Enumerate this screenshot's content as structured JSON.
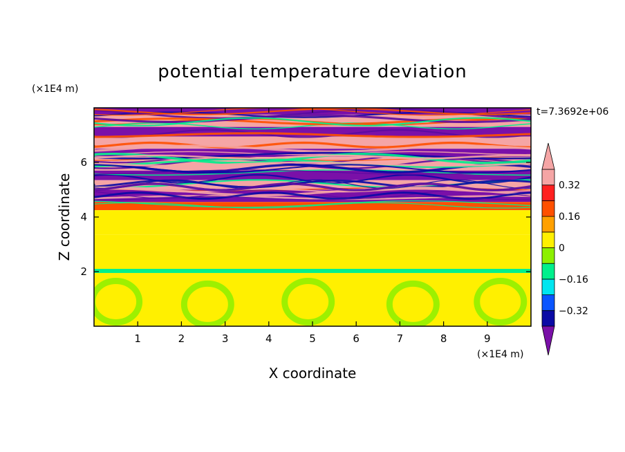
{
  "chart_data": {
    "type": "heatmap",
    "title": "potential temperature deviation",
    "xlabel": "X coordinate",
    "ylabel": "Z coordinate",
    "x_unit": "(×1E4 m)",
    "y_unit": "(×1E4 m)",
    "time_label": "t=7.3692e+06",
    "xlim": [
      0,
      10
    ],
    "ylim": [
      0,
      8
    ],
    "x_ticks": [
      1,
      2,
      3,
      4,
      5,
      6,
      7,
      8,
      9
    ],
    "y_ticks": [
      2,
      4,
      6
    ],
    "colorbar": {
      "levels": [
        -0.4,
        -0.32,
        -0.24,
        -0.16,
        -0.08,
        0,
        0.08,
        0.16,
        0.24,
        0.32,
        0.4
      ],
      "tick_labels": [
        "0.32",
        "0.16",
        "0",
        "−0.16",
        "−0.32"
      ],
      "tick_values": [
        0.32,
        0.16,
        0,
        -0.16,
        -0.32
      ],
      "colors": [
        "#5a0aa0",
        "#0a0aa5",
        "#0a55ff",
        "#00e6f0",
        "#00f08c",
        "#8cf000",
        "#fff000",
        "#ffa000",
        "#ff5000",
        "#ff2020",
        "#f5a5a5"
      ],
      "under_color": "#7a10a8",
      "over_color": "#f5a5a5"
    },
    "bands": [
      {
        "z": [
          7.75,
          8.0
        ],
        "value": -0.42
      },
      {
        "z": [
          7.3,
          7.75
        ],
        "value": 0.42
      },
      {
        "z": [
          6.95,
          7.3
        ],
        "value": -0.42
      },
      {
        "z": [
          6.5,
          6.95
        ],
        "value": 0.42
      },
      {
        "z": [
          6.2,
          6.5
        ],
        "value": -0.42
      },
      {
        "z": [
          5.7,
          6.2
        ],
        "value": 0.42
      },
      {
        "z": [
          5.35,
          5.7
        ],
        "value": -0.42
      },
      {
        "z": [
          5.0,
          5.35
        ],
        "value": 0.42
      },
      {
        "z": [
          4.55,
          5.0
        ],
        "value": -0.42
      },
      {
        "z": [
          4.25,
          4.55
        ],
        "value": 0.2
      },
      {
        "z": [
          3.35,
          4.25
        ],
        "value": 0.04
      },
      {
        "z": [
          2.1,
          3.35
        ],
        "value": 0.02
      },
      {
        "z": [
          1.95,
          2.1
        ],
        "value": -0.12
      },
      {
        "z": [
          0,
          1.95
        ],
        "value": 0.03
      }
    ]
  }
}
